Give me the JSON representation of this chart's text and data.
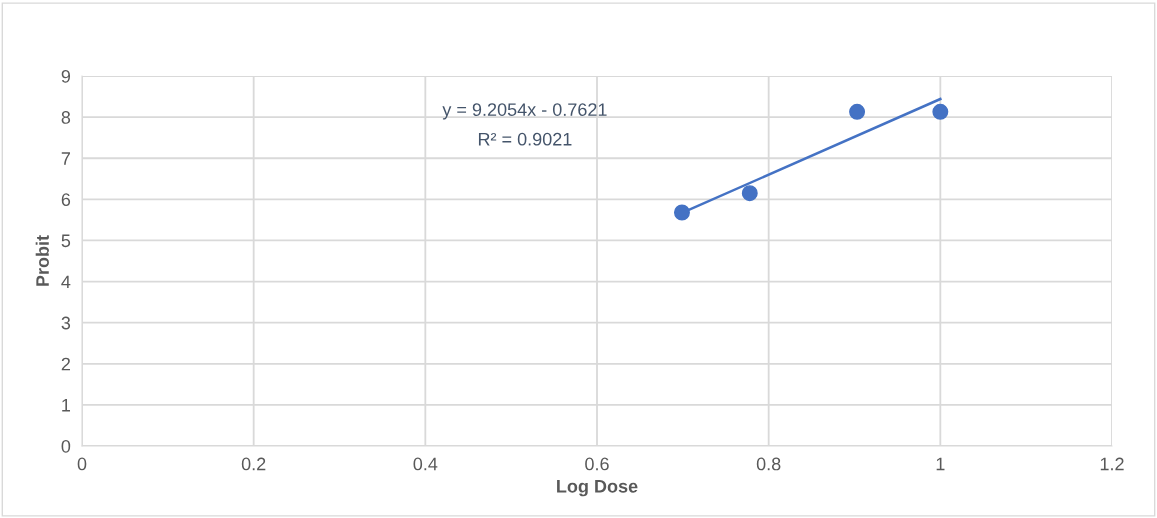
{
  "chart_data": {
    "type": "scatter",
    "xlabel": "Log Dose",
    "ylabel": "Probit",
    "annotations": [
      "y = 9.2054x - 0.7621",
      "R² = 0.9021"
    ],
    "series": [
      {
        "color": "#4472c4",
        "marker": "circle",
        "x": [
          0.699,
          0.778,
          0.903,
          1.0
        ],
        "values": [
          5.68,
          6.15,
          8.13,
          8.13
        ]
      },
      {
        "type": "line",
        "color": "#4472c4",
        "x": [
          0.699,
          1.0
        ],
        "values": [
          5.67,
          8.44
        ]
      }
    ],
    "line_style": "solid",
    "xlim": [
      0,
      1.2
    ],
    "xticks": [
      0,
      0.2,
      0.4,
      0.6,
      0.8,
      1,
      1.2
    ],
    "ylim": [
      0,
      9
    ],
    "yticks": [
      0,
      1,
      2,
      3,
      4,
      5,
      6,
      7,
      8,
      9
    ],
    "grid": true,
    "legend": false
  }
}
